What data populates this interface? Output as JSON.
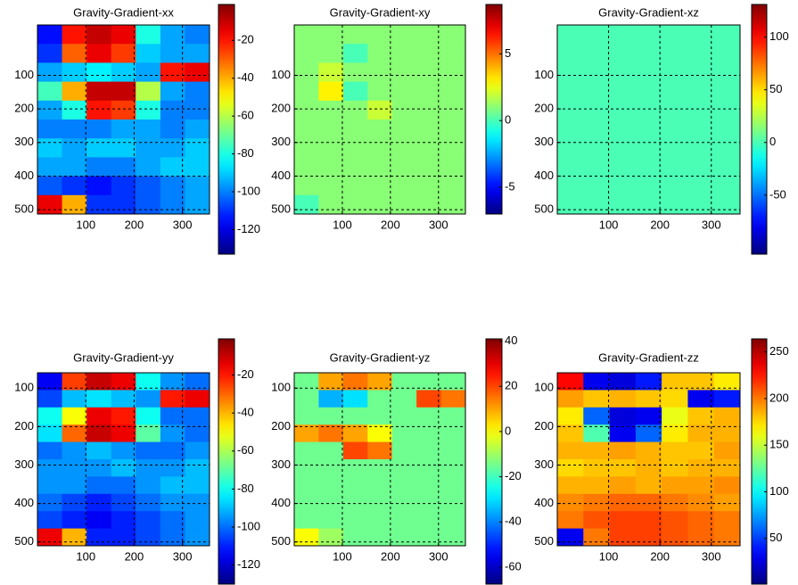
{
  "chart_data": [
    {
      "type": "heatmap",
      "title": "Gravity-Gradient-xx",
      "colormap": "jet",
      "grid": true,
      "yreverse": true,
      "xlim": [
        0,
        356
      ],
      "ylim": [
        -50,
        513
      ],
      "xticks": [
        100,
        200,
        300
      ],
      "yticks": [
        100,
        200,
        300,
        400,
        500
      ],
      "clim": [
        -133,
        -1
      ],
      "cticks": [
        -20,
        -40,
        -60,
        -80,
        -100,
        -120
      ],
      "z": [
        [
          -115,
          -20,
          -10,
          -15,
          -80,
          -95,
          -100
        ],
        [
          -110,
          -30,
          -15,
          -25,
          -90,
          -95,
          -95
        ],
        [
          -95,
          -90,
          -85,
          -90,
          -95,
          -20,
          -15
        ],
        [
          -75,
          -40,
          -10,
          -10,
          -60,
          -95,
          -100
        ],
        [
          -95,
          -80,
          -20,
          -25,
          -80,
          -100,
          -100
        ],
        [
          -100,
          -100,
          -100,
          -95,
          -95,
          -100,
          -95
        ],
        [
          -90,
          -95,
          -90,
          -90,
          -95,
          -95,
          -90
        ],
        [
          -95,
          -95,
          -100,
          -100,
          -95,
          -90,
          -90
        ],
        [
          -105,
          -110,
          -115,
          -110,
          -105,
          -100,
          -95
        ],
        [
          -15,
          -40,
          -110,
          -110,
          -105,
          -100,
          -95
        ]
      ]
    },
    {
      "type": "heatmap",
      "title": "Gravity-Gradient-xy",
      "colormap": "jet",
      "grid": true,
      "yreverse": true,
      "xlim": [
        0,
        356
      ],
      "ylim": [
        -50,
        513
      ],
      "xticks": [
        100,
        200,
        300
      ],
      "yticks": [
        100,
        200,
        300,
        400,
        500
      ],
      "clim": [
        -7,
        8.7
      ],
      "cticks": [
        5,
        0,
        -5
      ],
      "z": [
        [
          1,
          1,
          1,
          1,
          1,
          1,
          1
        ],
        [
          1,
          1,
          0,
          1,
          1,
          1,
          1
        ],
        [
          1,
          2,
          1,
          1,
          1,
          1,
          1
        ],
        [
          1,
          3,
          0,
          1,
          1,
          1,
          1
        ],
        [
          1,
          1,
          1,
          2,
          1,
          1,
          1
        ],
        [
          1,
          1,
          1,
          1,
          1,
          1,
          1
        ],
        [
          1,
          1,
          1,
          1,
          1,
          1,
          1
        ],
        [
          1,
          1,
          1,
          1,
          1,
          1,
          1
        ],
        [
          1,
          1,
          1,
          1,
          1,
          1,
          1
        ],
        [
          0,
          1,
          1,
          1,
          1,
          1,
          1
        ]
      ]
    },
    {
      "type": "heatmap",
      "title": "Gravity-Gradient-xz",
      "colormap": "jet",
      "grid": true,
      "yreverse": true,
      "xlim": [
        0,
        356
      ],
      "ylim": [
        -50,
        513
      ],
      "xticks": [
        100,
        200,
        300
      ],
      "yticks": [
        100,
        200,
        300,
        400,
        500
      ],
      "clim": [
        -106,
        131
      ],
      "cticks": [
        100,
        50,
        0,
        -50
      ],
      "z": [
        [
          0,
          0,
          0,
          0,
          0,
          0,
          0
        ],
        [
          0,
          0,
          0,
          0,
          0,
          0,
          0
        ],
        [
          0,
          0,
          0,
          0,
          0,
          0,
          0
        ],
        [
          0,
          0,
          0,
          0,
          0,
          0,
          0
        ],
        [
          0,
          0,
          0,
          0,
          0,
          0,
          0
        ],
        [
          0,
          0,
          0,
          0,
          0,
          0,
          0
        ],
        [
          0,
          0,
          0,
          0,
          0,
          0,
          0
        ],
        [
          0,
          0,
          0,
          0,
          0,
          0,
          0
        ],
        [
          0,
          0,
          0,
          0,
          0,
          0,
          0
        ],
        [
          0,
          0,
          0,
          0,
          0,
          0,
          0
        ]
      ]
    },
    {
      "type": "heatmap",
      "title": "Gravity-Gradient-yy",
      "colormap": "jet",
      "grid": true,
      "yreverse": true,
      "xlim": [
        0,
        356
      ],
      "ylim": [
        60,
        510
      ],
      "xticks": [
        100,
        200,
        300
      ],
      "yticks": [
        100,
        200,
        300,
        400,
        500
      ],
      "clim": [
        -130,
        -1
      ],
      "cticks": [
        -20,
        -40,
        -60,
        -80,
        -100,
        -120
      ],
      "z": [
        [
          -115,
          -25,
          -10,
          -15,
          -80,
          -95,
          -100
        ],
        [
          -105,
          -90,
          -85,
          -90,
          -95,
          -20,
          -15
        ],
        [
          -80,
          -50,
          -15,
          -20,
          -80,
          -100,
          -100
        ],
        [
          -85,
          -30,
          -10,
          -15,
          -70,
          -95,
          -100
        ],
        [
          -100,
          -95,
          -90,
          -95,
          -100,
          -100,
          -95
        ],
        [
          -95,
          -95,
          -95,
          -90,
          -95,
          -95,
          -90
        ],
        [
          -95,
          -95,
          -100,
          -100,
          -95,
          -90,
          -90
        ],
        [
          -100,
          -105,
          -110,
          -105,
          -100,
          -95,
          -95
        ],
        [
          -105,
          -110,
          -115,
          -110,
          -105,
          -100,
          -95
        ],
        [
          -15,
          -40,
          -110,
          -110,
          -105,
          -100,
          -95
        ]
      ]
    },
    {
      "type": "heatmap",
      "title": "Gravity-Gradient-yz",
      "colormap": "jet",
      "grid": true,
      "yreverse": true,
      "xlim": [
        0,
        356
      ],
      "ylim": [
        60,
        510
      ],
      "xticks": [
        100,
        200,
        300
      ],
      "yticks": [
        100,
        200,
        300,
        400,
        500
      ],
      "clim": [
        -67.5,
        41
      ],
      "cticks": [
        40,
        20,
        0,
        -20,
        -40,
        -60
      ],
      "z": [
        [
          -15,
          10,
          15,
          10,
          -15,
          -15,
          -15
        ],
        [
          -15,
          -35,
          -30,
          -15,
          -15,
          20,
          15
        ],
        [
          -15,
          -15,
          -15,
          -15,
          -15,
          -15,
          -15
        ],
        [
          10,
          15,
          10,
          0,
          -15,
          -15,
          -15
        ],
        [
          -15,
          -15,
          20,
          15,
          -15,
          -15,
          -15
        ],
        [
          -15,
          -15,
          -15,
          -15,
          -15,
          -15,
          -15
        ],
        [
          -15,
          -15,
          -15,
          -15,
          -15,
          -15,
          -15
        ],
        [
          -15,
          -15,
          -15,
          -15,
          -15,
          -15,
          -15
        ],
        [
          -15,
          -15,
          -15,
          -15,
          -15,
          -15,
          -15
        ],
        [
          0,
          -10,
          -15,
          -15,
          -15,
          -15,
          -15
        ]
      ]
    },
    {
      "type": "heatmap",
      "title": "Gravity-Gradient-zz",
      "colormap": "jet",
      "grid": true,
      "yreverse": true,
      "xlim": [
        0,
        356
      ],
      "ylim": [
        60,
        510
      ],
      "xticks": [
        100,
        200,
        300
      ],
      "yticks": [
        100,
        200,
        300,
        400,
        500
      ],
      "clim": [
        1,
        264
      ],
      "cticks": [
        250,
        200,
        150,
        100,
        50
      ],
      "z": [
        [
          230,
          30,
          25,
          40,
          180,
          180,
          170
        ],
        [
          190,
          180,
          185,
          180,
          175,
          30,
          40
        ],
        [
          170,
          60,
          25,
          30,
          160,
          180,
          185
        ],
        [
          180,
          120,
          30,
          60,
          170,
          185,
          185
        ],
        [
          185,
          185,
          190,
          185,
          180,
          180,
          190
        ],
        [
          175,
          180,
          180,
          185,
          180,
          185,
          185
        ],
        [
          185,
          185,
          190,
          185,
          190,
          190,
          195
        ],
        [
          195,
          200,
          205,
          205,
          200,
          195,
          190
        ],
        [
          200,
          210,
          215,
          215,
          210,
          205,
          200
        ],
        [
          30,
          200,
          215,
          215,
          210,
          205,
          200
        ]
      ]
    }
  ]
}
